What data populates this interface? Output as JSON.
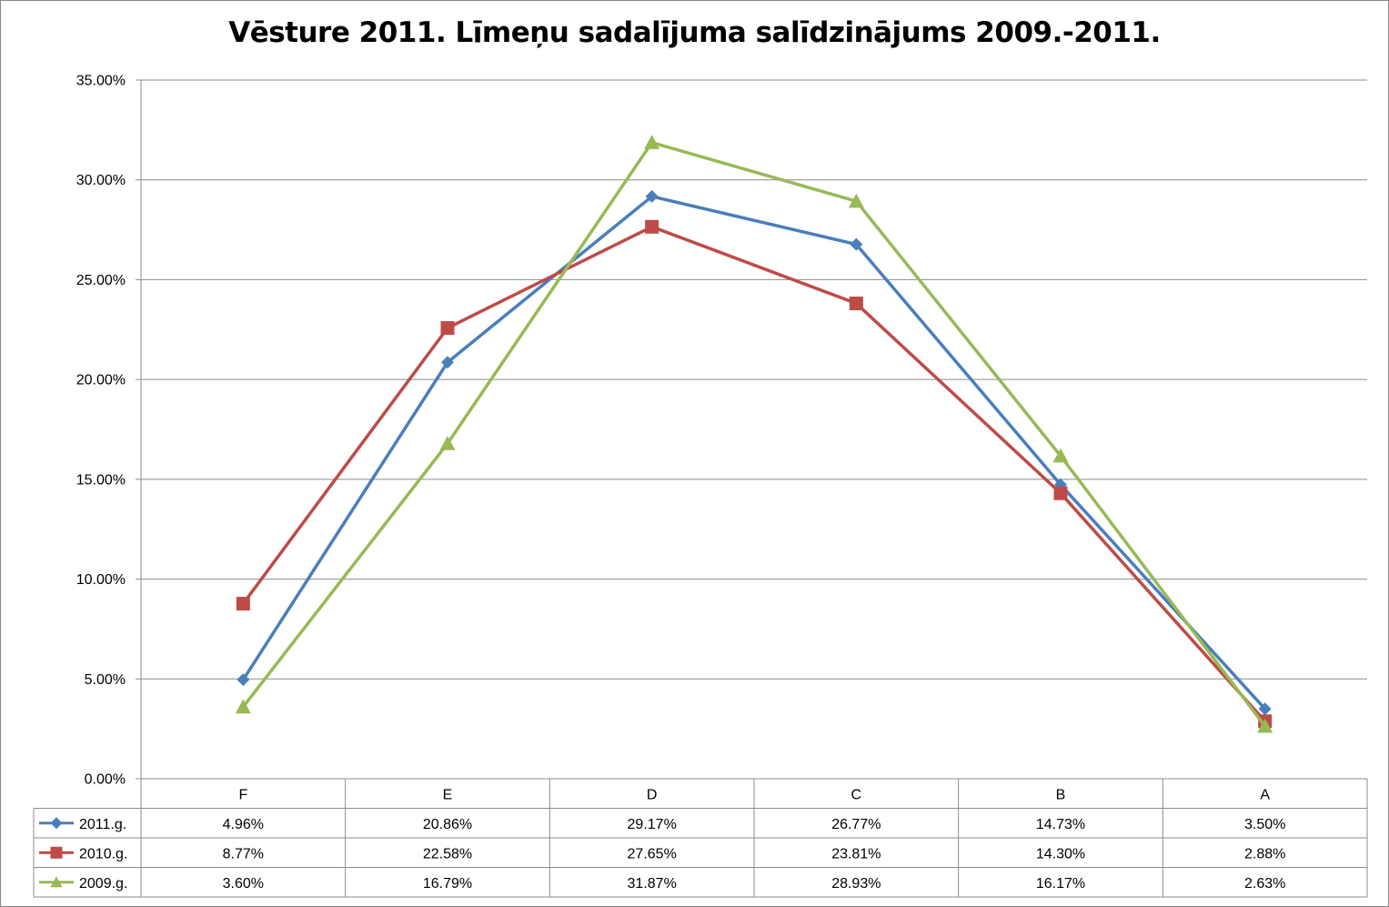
{
  "chart_data": {
    "type": "line",
    "title": "Vēsture 2011. Līmeņu sadalījuma salīdzinājums 2009.-2011.",
    "categories": [
      "F",
      "E",
      "D",
      "C",
      "B",
      "A"
    ],
    "series": [
      {
        "name": "2011.g.",
        "values": [
          4.96,
          20.86,
          29.17,
          26.77,
          14.73,
          3.5
        ],
        "labels": [
          "4.96%",
          "20.86%",
          "29.17%",
          "26.77%",
          "14.73%",
          "3.50%"
        ],
        "color": "#4a7ebb",
        "marker": "diamond"
      },
      {
        "name": "2010.g.",
        "values": [
          8.77,
          22.58,
          27.65,
          23.81,
          14.3,
          2.88
        ],
        "labels": [
          "8.77%",
          "22.58%",
          "27.65%",
          "23.81%",
          "14.30%",
          "2.88%"
        ],
        "color": "#be4b48",
        "marker": "square"
      },
      {
        "name": "2009.g.",
        "values": [
          3.6,
          16.79,
          31.87,
          28.93,
          16.17,
          2.63
        ],
        "labels": [
          "3.60%",
          "16.79%",
          "31.87%",
          "28.93%",
          "16.17%",
          "2.63%"
        ],
        "color": "#98b954",
        "marker": "triangle"
      }
    ],
    "ylim": [
      0,
      35
    ],
    "yticks": [
      "0.00%",
      "5.00%",
      "10.00%",
      "15.00%",
      "20.00%",
      "25.00%",
      "30.00%",
      "35.00%"
    ],
    "grid": true,
    "legend": "data-table"
  }
}
